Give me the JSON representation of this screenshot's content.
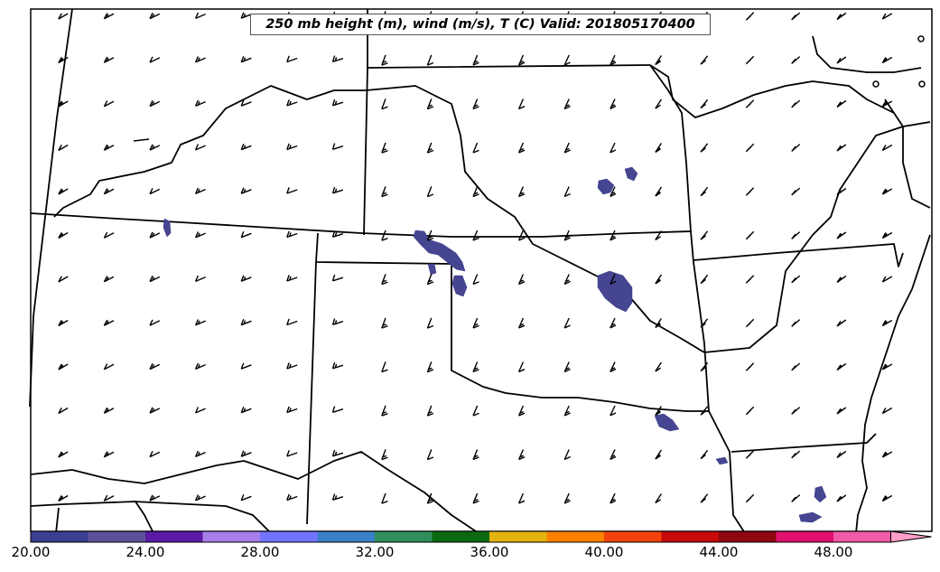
{
  "title": "250 mb height (m), wind (m/s), T (C) Valid: 201805170400",
  "colorbar": {
    "colors": [
      "#3b3f8f",
      "#5c509b",
      "#5a1aa5",
      "#a57ee8",
      "#7373ff",
      "#3a7fc8",
      "#2f8f5a",
      "#0b6a10",
      "#e3b30e",
      "#ff8000",
      "#f2420b",
      "#c70a0a",
      "#8e0610",
      "#e0116e",
      "#f15aa8",
      "#ff9ec8"
    ],
    "ticks": [
      "20.00",
      "24.00",
      "28.00",
      "32.00",
      "36.00",
      "40.00",
      "44.00",
      "48.00"
    ]
  },
  "colors": {
    "highlight_fill": "#454592",
    "line": "#000000"
  }
}
